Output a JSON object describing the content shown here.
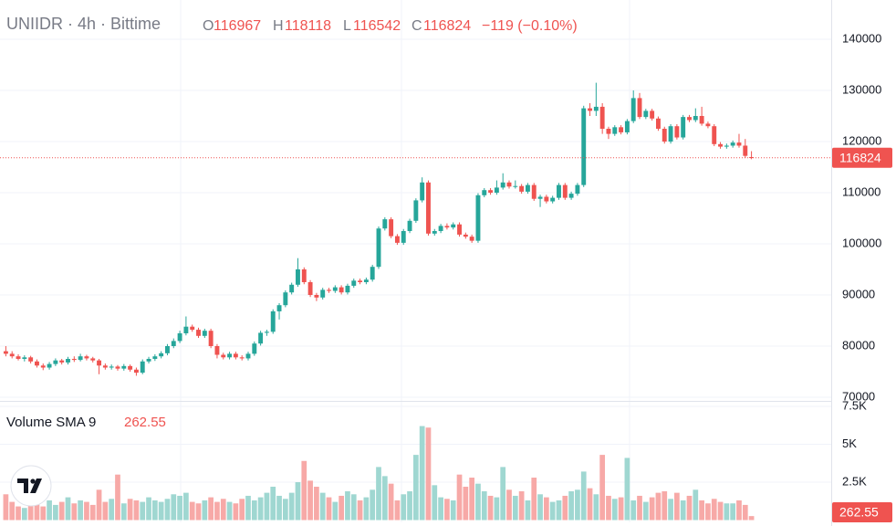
{
  "chart_data": {
    "type": "candlestick",
    "title": "UNIIDR · 4h · Bittime",
    "ohlc_labels": [
      "O",
      "H",
      "L",
      "C"
    ],
    "change": "−119 (−0.10%)",
    "volume_title": "Volume SMA 9",
    "up_color": "#26a69a",
    "down_color": "#ef5350",
    "volume_up_color": "#9fd7d1",
    "volume_down_color": "#f7a9a7",
    "ylim": [
      69464,
      147679
    ],
    "yticks": [
      70000,
      80000,
      90000,
      100000,
      110000,
      120000,
      130000,
      140000
    ],
    "y2lim": [
      -150,
      7800
    ],
    "y2ticks": [
      {
        "value": 2500,
        "label": "2.5K"
      },
      {
        "value": 5000,
        "label": "5K"
      },
      {
        "value": 7500,
        "label": "7.5K"
      }
    ],
    "grid": true,
    "open": [
      79000,
      78500,
      78000,
      77500,
      77800,
      77000,
      76200,
      75800,
      76500,
      77200,
      76800,
      77500,
      77300,
      78000,
      77600,
      77200,
      76200,
      75800,
      76000,
      75600,
      76100,
      75400,
      74800,
      77000,
      77500,
      78000,
      78600,
      80000,
      81000,
      82500,
      83800,
      83200,
      82000,
      83000,
      80000,
      78300,
      77800,
      78500,
      77800,
      77600,
      78500,
      80500,
      82600,
      82800,
      86800,
      88000,
      90500,
      92000,
      95000,
      92500,
      90000,
      89500,
      91000,
      90800,
      91500,
      90500,
      91800,
      92800,
      92500,
      93000,
      95500,
      103000,
      104800,
      101500,
      100200,
      102500,
      104500,
      108500,
      112000,
      102000,
      102500,
      103500,
      103200,
      103800,
      101800,
      101400,
      100600,
      109500,
      110500,
      110000,
      111000,
      112000,
      111200,
      111300,
      110200,
      111500,
      108800,
      109200,
      108300,
      109000,
      111500,
      109000,
      109800,
      111500,
      126500,
      126000,
      126800,
      122500,
      121500,
      122800,
      121800,
      124000,
      128500,
      124800,
      126000,
      124500,
      122500,
      120000,
      123000,
      120800,
      124800,
      124200,
      125000,
      123500,
      123000,
      119500,
      119000,
      119200,
      119800,
      119200,
      116967
    ],
    "high": [
      80000,
      79000,
      78400,
      78200,
      78100,
      77400,
      76600,
      76900,
      77600,
      77500,
      77900,
      78000,
      78500,
      78300,
      77900,
      77500,
      76600,
      76400,
      76300,
      76500,
      76400,
      75800,
      77400,
      77900,
      78400,
      79000,
      80400,
      81500,
      83000,
      85800,
      84200,
      83600,
      83400,
      83400,
      80400,
      78700,
      78900,
      78900,
      78200,
      78900,
      80900,
      83000,
      83200,
      87200,
      88400,
      90900,
      92400,
      97200,
      95400,
      92900,
      90400,
      91400,
      91400,
      91900,
      91900,
      92200,
      93200,
      93200,
      93400,
      95900,
      103400,
      105200,
      105200,
      101900,
      102900,
      104900,
      108900,
      113000,
      112400,
      102900,
      103900,
      104000,
      104200,
      104200,
      102200,
      101800,
      109900,
      110900,
      110900,
      112400,
      113800,
      112400,
      112400,
      111700,
      111900,
      111900,
      109600,
      109600,
      109400,
      111900,
      111900,
      110200,
      111900,
      127000,
      127500,
      131500,
      127500,
      122900,
      123200,
      123200,
      124400,
      130000,
      129500,
      126400,
      126400,
      124900,
      122900,
      123400,
      123400,
      125200,
      125200,
      126500,
      126800,
      123900,
      123400,
      119900,
      119600,
      120200,
      121500,
      120500,
      118118
    ],
    "low": [
      78000,
      77600,
      77200,
      77000,
      76600,
      75800,
      75300,
      75400,
      76100,
      76400,
      76400,
      76900,
      77000,
      77200,
      76800,
      74500,
      75400,
      75400,
      75200,
      75200,
      75000,
      74200,
      74500,
      76600,
      77100,
      77600,
      78200,
      79600,
      80600,
      82100,
      82800,
      81600,
      81600,
      79600,
      77600,
      77400,
      77400,
      77400,
      77200,
      77200,
      78100,
      80100,
      82000,
      82400,
      85200,
      87600,
      90100,
      91600,
      92100,
      89600,
      88800,
      89100,
      90400,
      90400,
      90100,
      90100,
      91400,
      92100,
      92100,
      92600,
      95100,
      102600,
      101100,
      99800,
      99800,
      102100,
      104100,
      108100,
      101600,
      101600,
      102100,
      102800,
      102800,
      101400,
      101000,
      100200,
      100200,
      109100,
      109600,
      109600,
      110600,
      110800,
      110800,
      109800,
      109800,
      108400,
      107200,
      107900,
      107900,
      108600,
      108600,
      108600,
      109400,
      111100,
      125000,
      125000,
      121500,
      120500,
      121100,
      121400,
      121400,
      123600,
      124400,
      124400,
      124100,
      122100,
      119600,
      119600,
      120400,
      120400,
      123800,
      123800,
      123100,
      122600,
      119100,
      118600,
      118600,
      118800,
      118800,
      116800,
      116542
    ],
    "close": [
      78500,
      78000,
      77500,
      77800,
      77000,
      76200,
      75800,
      76500,
      77200,
      76800,
      77500,
      77300,
      78000,
      77600,
      77200,
      76200,
      75800,
      76000,
      75600,
      76100,
      75400,
      74800,
      77000,
      77500,
      78000,
      78600,
      80000,
      81000,
      82500,
      83800,
      83200,
      82000,
      83000,
      80000,
      78300,
      77800,
      78500,
      77800,
      77600,
      78500,
      80500,
      82600,
      82800,
      86800,
      88000,
      90500,
      92000,
      95000,
      92500,
      90000,
      89500,
      91000,
      90800,
      91500,
      90500,
      91800,
      92800,
      92500,
      93000,
      95500,
      103000,
      104800,
      101500,
      100200,
      102500,
      104500,
      108500,
      112000,
      102000,
      102500,
      103500,
      103200,
      103800,
      101800,
      101400,
      100600,
      109500,
      110500,
      110000,
      111000,
      112000,
      111200,
      111300,
      110200,
      111500,
      108800,
      109200,
      108300,
      109000,
      111500,
      109000,
      109800,
      111500,
      126500,
      126000,
      126800,
      122500,
      121500,
      122800,
      121800,
      124000,
      128500,
      124800,
      126000,
      124500,
      122500,
      120000,
      123000,
      120800,
      124800,
      124200,
      125000,
      123500,
      123000,
      119500,
      119000,
      119200,
      119800,
      119200,
      117200,
      116824
    ],
    "volume": [
      1700,
      1200,
      900,
      800,
      1400,
      1100,
      900,
      1300,
      1000,
      1200,
      1500,
      1100,
      1300,
      1200,
      1000,
      2000,
      1200,
      1400,
      3000,
      1100,
      1400,
      1300,
      1200,
      1500,
      1300,
      1200,
      1400,
      1700,
      1600,
      1800,
      1200,
      1100,
      1300,
      1500,
      1200,
      1400,
      1200,
      1100,
      1400,
      1600,
      1300,
      1500,
      1800,
      2200,
      1600,
      1400,
      1800,
      2500,
      3900,
      2600,
      2200,
      1800,
      1500,
      1200,
      1600,
      1900,
      1700,
      1300,
      1500,
      2000,
      3500,
      2900,
      2400,
      1300,
      1700,
      1900,
      4300,
      6200,
      6100,
      2300,
      1500,
      1400,
      1300,
      3000,
      2200,
      2800,
      2400,
      1900,
      1600,
      1500,
      3500,
      2000,
      1600,
      1900,
      1300,
      2800,
      1700,
      1500,
      1200,
      1300,
      1600,
      1900,
      2000,
      3200,
      2100,
      1700,
      4300,
      1600,
      1400,
      1500,
      4100,
      1300,
      1600,
      1200,
      1500,
      1800,
      1900,
      1400,
      1800,
      1300,
      1600,
      2000,
      1300,
      1100,
      1400,
      1200,
      1100,
      1100,
      1300,
      1000,
      262.55
    ]
  }
}
